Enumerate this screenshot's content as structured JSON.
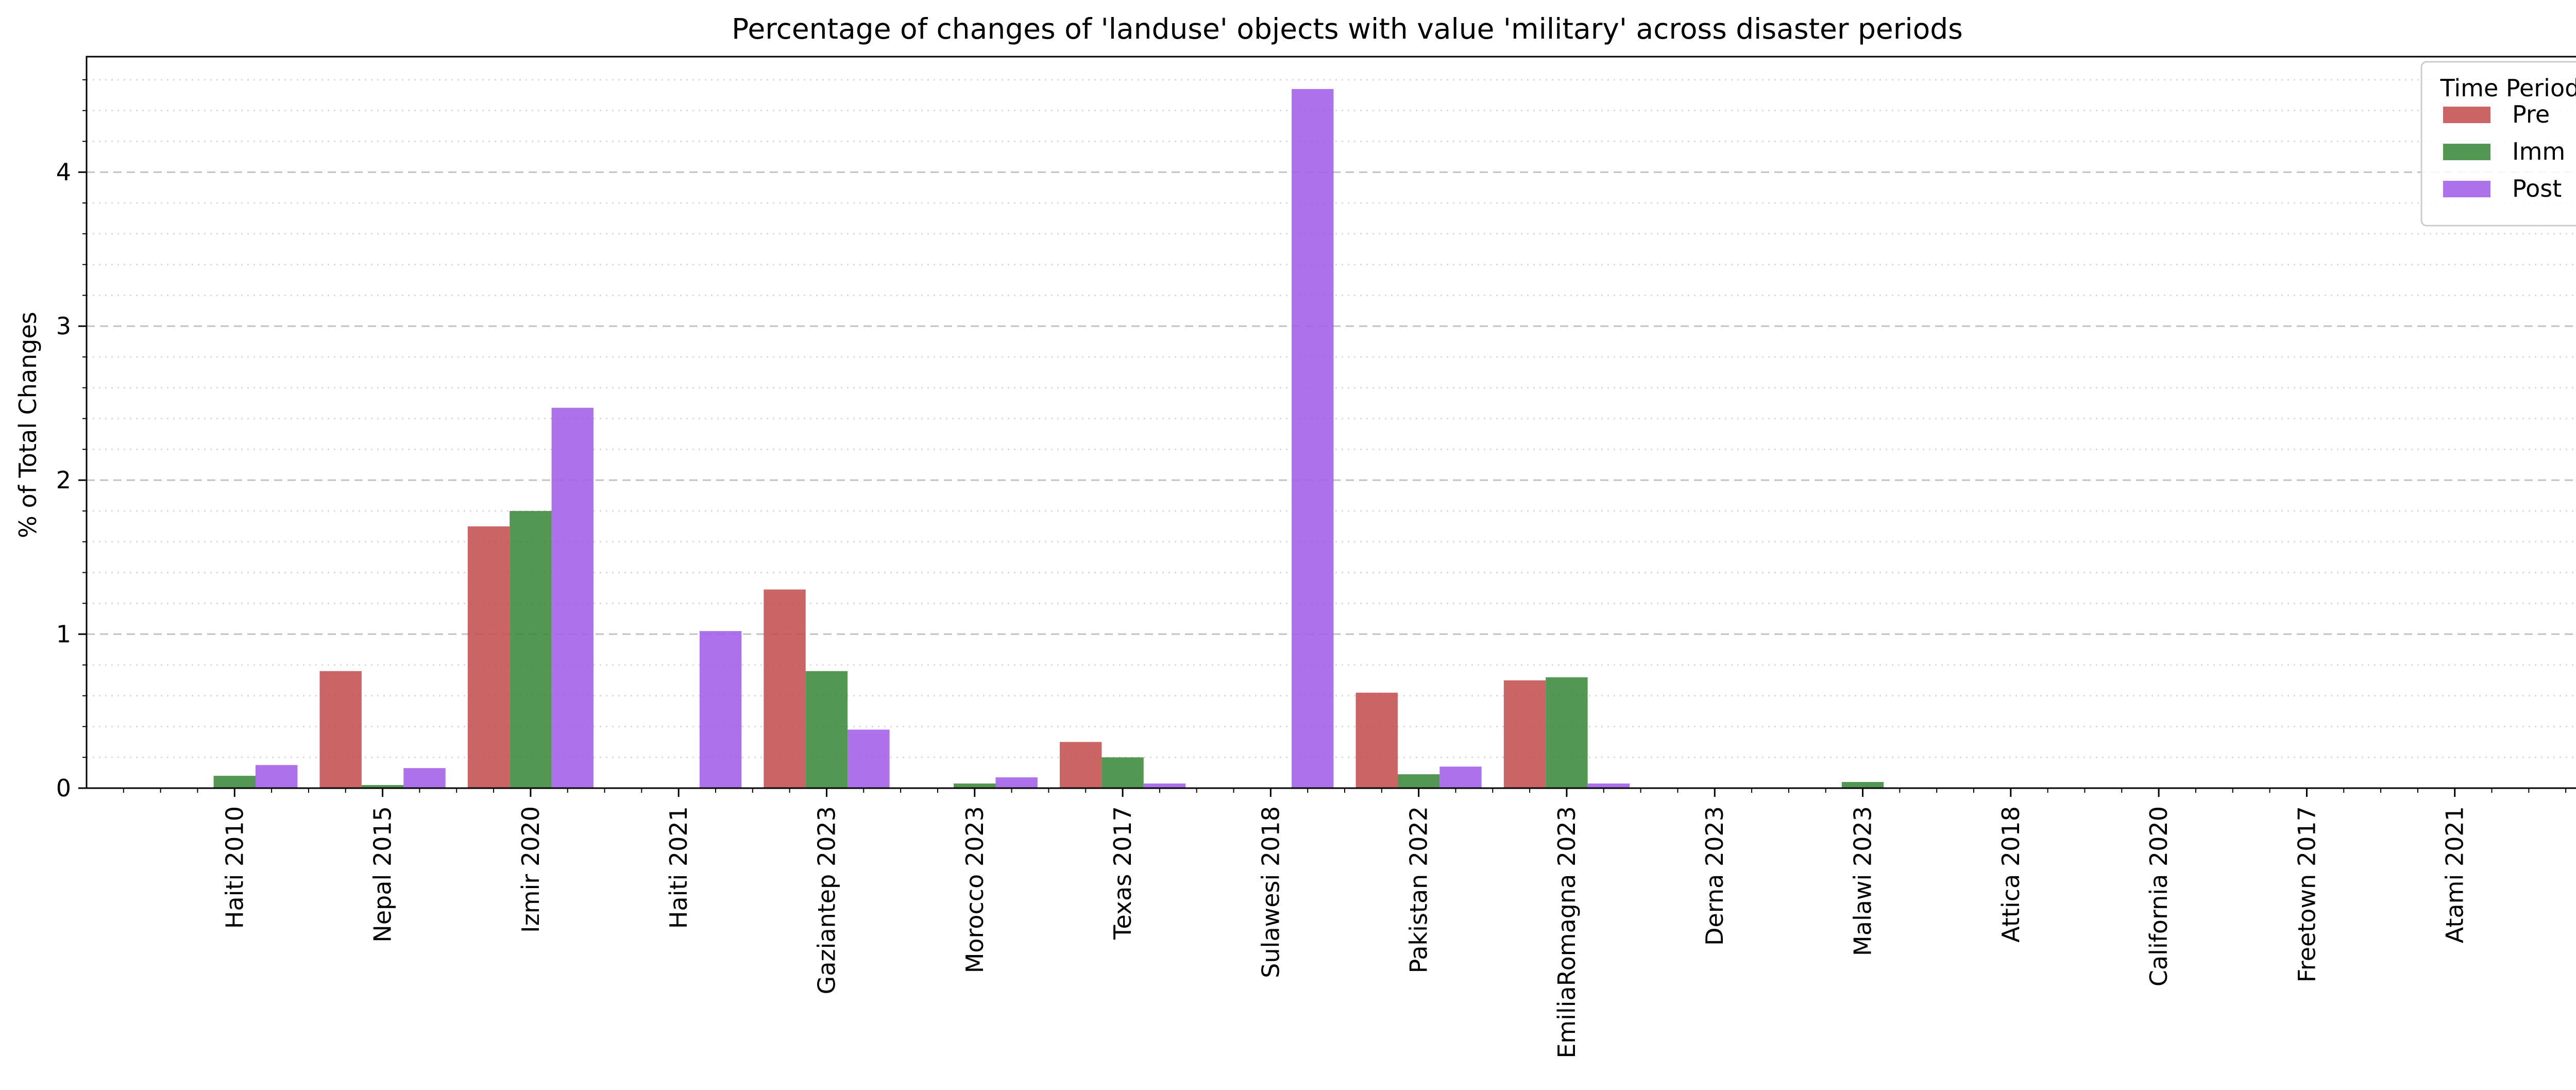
{
  "chart_data": {
    "type": "bar",
    "title": "Percentage of changes of 'landuse' objects with value 'military' across disaster periods",
    "xlabel": "",
    "ylabel": "% of Total Changes",
    "ylim": [
      0,
      4.75
    ],
    "yticks": [
      0,
      1,
      2,
      3,
      4
    ],
    "grid": "horizontal major dashed, minor dotted",
    "legend_title": "Time Period",
    "legend_position": "top-right",
    "categories": [
      "Haiti 2010",
      "Nepal 2015",
      "Izmir 2020",
      "Haiti 2021",
      "Gaziantep 2023",
      "Morocco 2023",
      "Texas 2017",
      "Sulawesi 2018",
      "Pakistan 2022",
      "EmiliaRomagna 2023",
      "Derna 2023",
      "Malawi 2023",
      "Attica 2018",
      "California 2020",
      "Freetown 2017",
      "Atami 2021"
    ],
    "series": [
      {
        "name": "Pre",
        "color": "#c44e4e",
        "values": [
          0,
          0.76,
          1.7,
          0,
          1.29,
          0,
          0.3,
          0,
          0.62,
          0.7,
          0,
          0,
          0,
          0,
          0,
          0
        ]
      },
      {
        "name": "Imm",
        "color": "#3a8a3a",
        "values": [
          0.08,
          0.02,
          1.8,
          0,
          0.76,
          0.03,
          0.2,
          0,
          0.09,
          0.72,
          0,
          0.04,
          0,
          0,
          0,
          0
        ]
      },
      {
        "name": "Post",
        "color": "#a25ee8",
        "values": [
          0.15,
          0.13,
          2.47,
          1.02,
          0.38,
          0.07,
          0.03,
          4.54,
          0.14,
          0.03,
          0,
          0,
          0,
          0,
          0,
          0
        ]
      }
    ]
  }
}
